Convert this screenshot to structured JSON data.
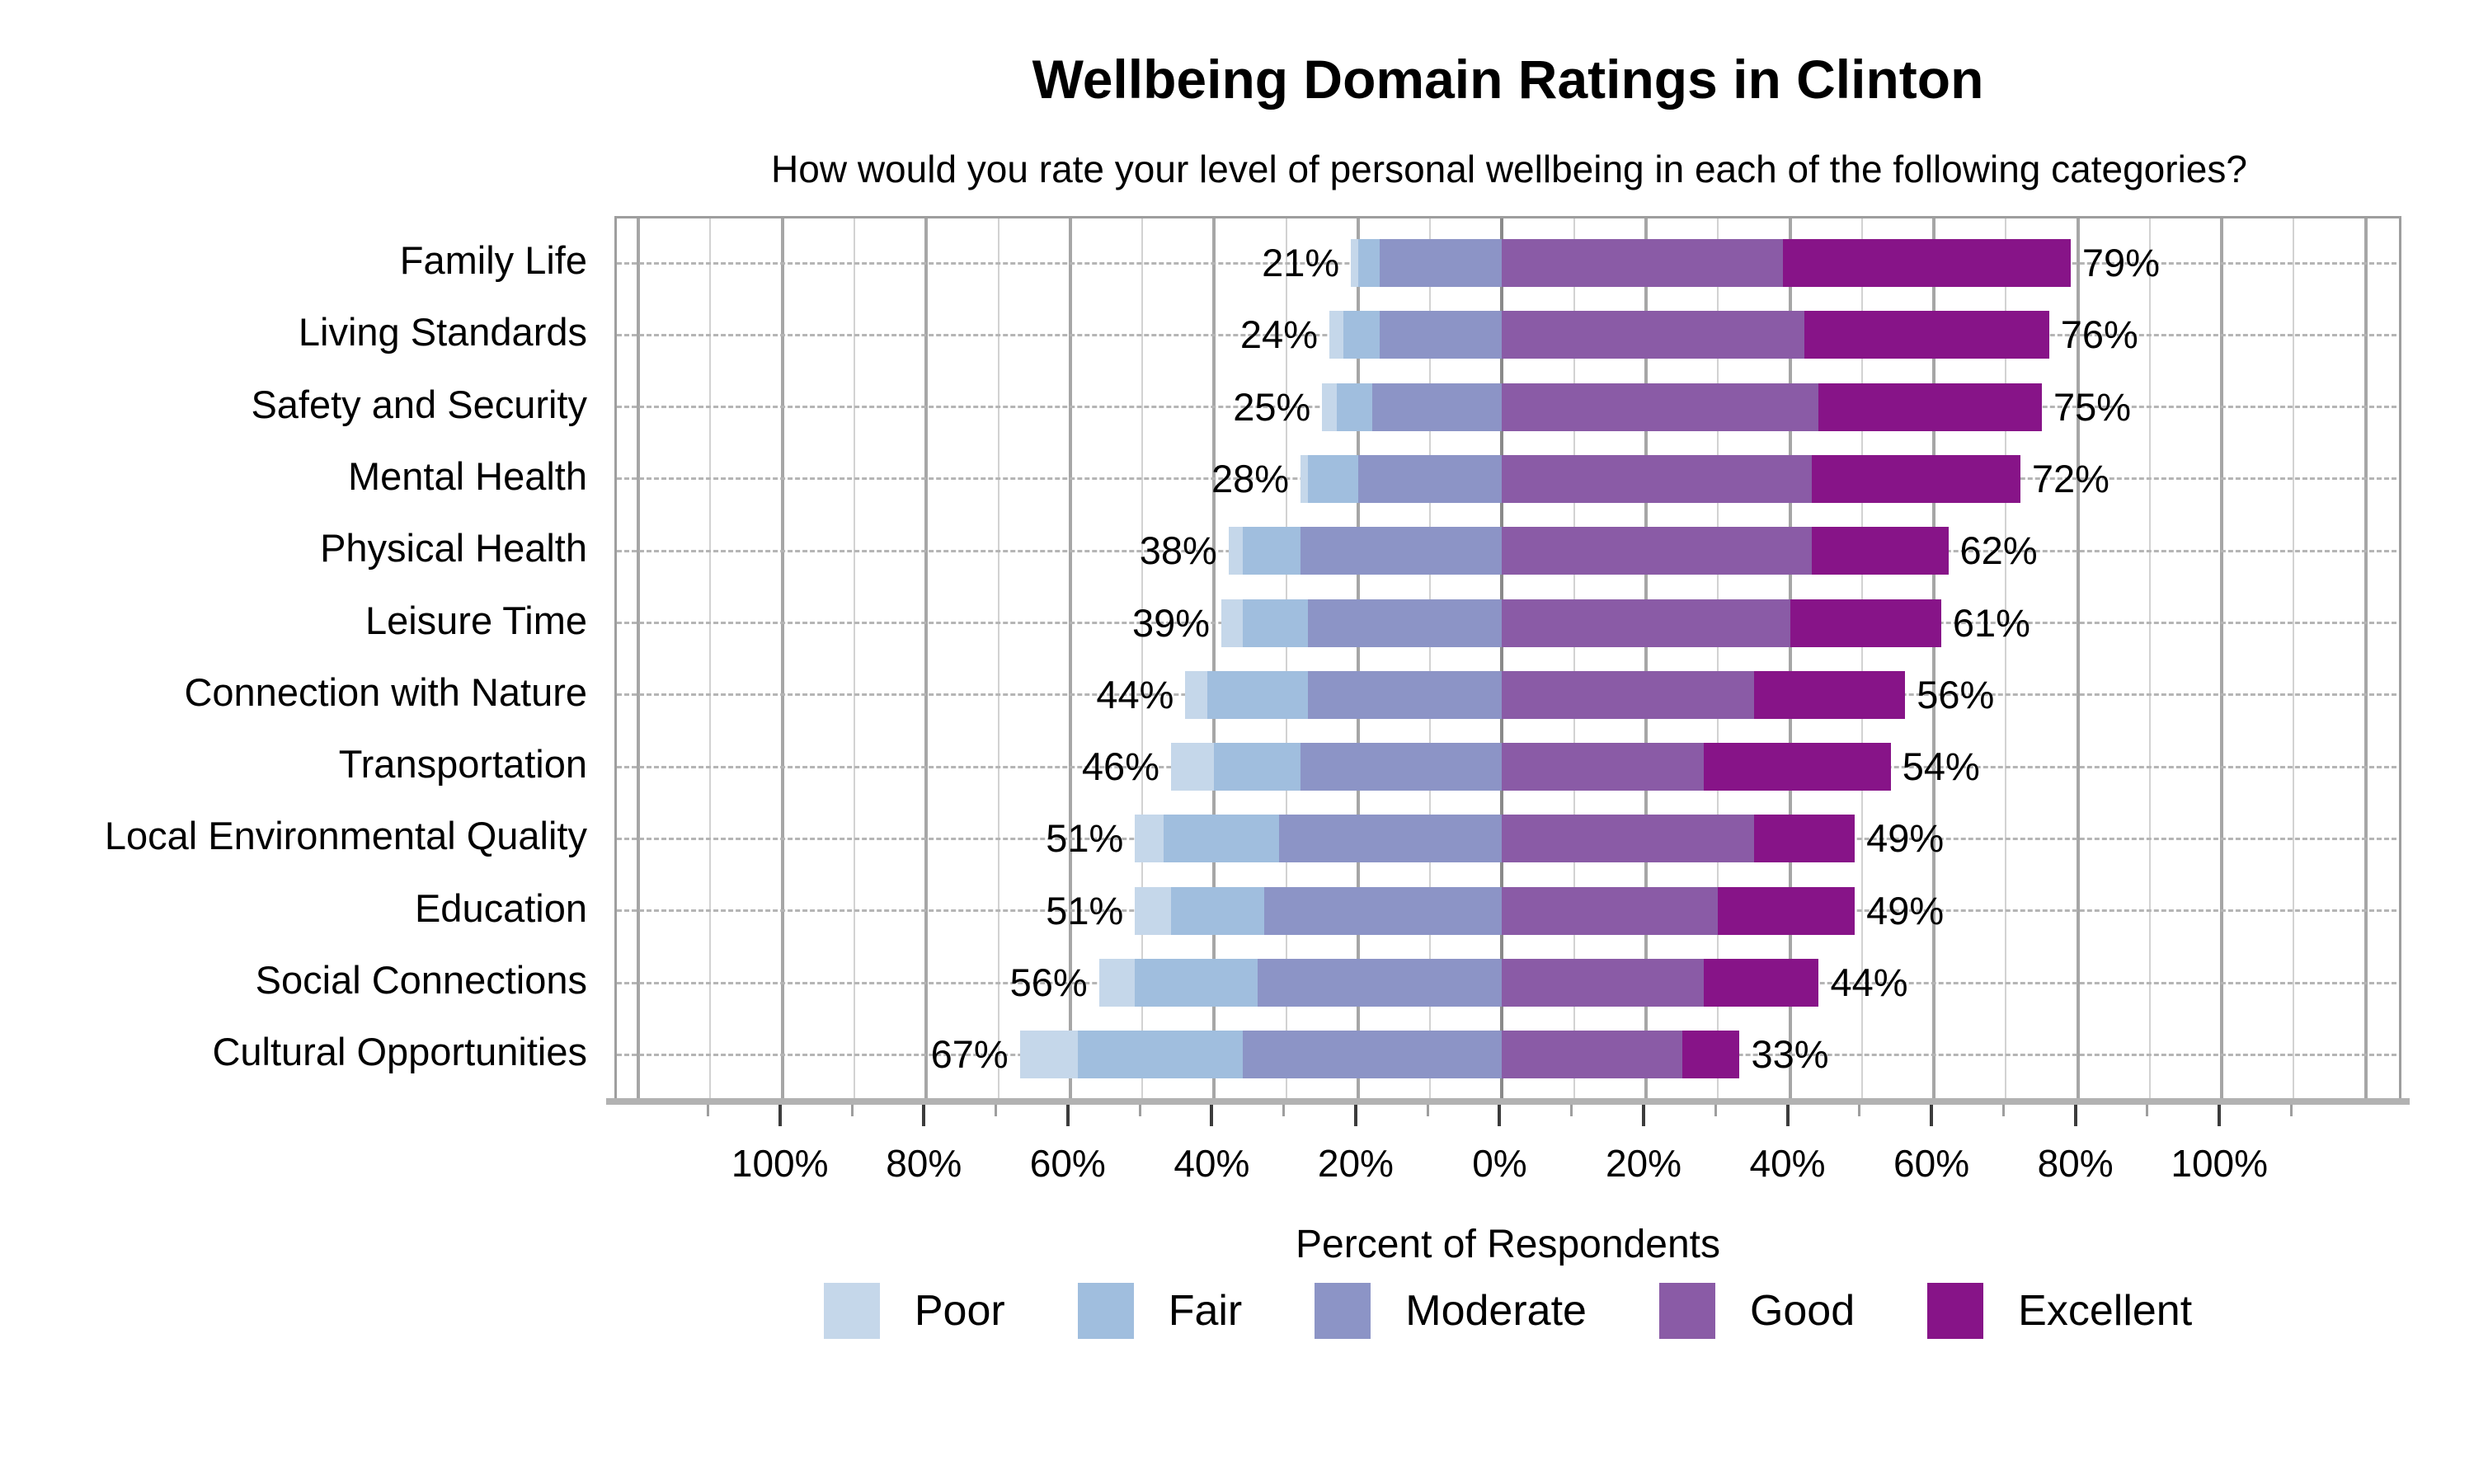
{
  "title": "Wellbeing Domain Ratings in Clinton",
  "subtitle": "How would you rate your level of personal wellbeing in each of the following categories?",
  "chart_data": {
    "type": "bar",
    "subtype": "diverging_stacked_bar",
    "title": "Wellbeing Domain Ratings in Clinton",
    "subtitle": "How would you rate your level of personal wellbeing in each of the following categories?",
    "xlabel": "Percent of Respondents",
    "ylabel": "",
    "xlim": [
      -123,
      125.3
    ],
    "grid": {
      "vertical_minor_step": 10,
      "vertical_major_step": 20,
      "horizontal": "dashed-per-category"
    },
    "legend_position": "bottom",
    "series_names": [
      "Poor",
      "Fair",
      "Moderate",
      "Good",
      "Excellent"
    ],
    "colors": {
      "Poor": "#C5D7EA",
      "Fair": "#A0BEDE",
      "Moderate": "#8C94C6",
      "Good": "#8A5BA6",
      "Excellent": "#871488"
    },
    "negative_side_series": [
      "Poor",
      "Fair",
      "Moderate"
    ],
    "positive_side_series": [
      "Good",
      "Excellent"
    ],
    "x_ticks": [
      {
        "value": -100,
        "label": "100%"
      },
      {
        "value": -80,
        "label": "80%"
      },
      {
        "value": -60,
        "label": "60%"
      },
      {
        "value": -40,
        "label": "40%"
      },
      {
        "value": -20,
        "label": "20%"
      },
      {
        "value": 0,
        "label": "0%"
      },
      {
        "value": 20,
        "label": "20%"
      },
      {
        "value": 40,
        "label": "40%"
      },
      {
        "value": 60,
        "label": "60%"
      },
      {
        "value": 80,
        "label": "80%"
      },
      {
        "value": 100,
        "label": "100%"
      }
    ],
    "rows": [
      {
        "category": "Family Life",
        "values": {
          "Poor": 1,
          "Fair": 3,
          "Moderate": 17,
          "Good": 39,
          "Excellent": 40
        },
        "left_label": "21%",
        "right_label": "79%"
      },
      {
        "category": "Living Standards",
        "values": {
          "Poor": 2,
          "Fair": 5,
          "Moderate": 17,
          "Good": 42,
          "Excellent": 34
        },
        "left_label": "24%",
        "right_label": "76%"
      },
      {
        "category": "Safety and Security",
        "values": {
          "Poor": 2,
          "Fair": 5,
          "Moderate": 18,
          "Good": 44,
          "Excellent": 31
        },
        "left_label": "25%",
        "right_label": "75%"
      },
      {
        "category": "Mental Health",
        "values": {
          "Poor": 1,
          "Fair": 7,
          "Moderate": 20,
          "Good": 43,
          "Excellent": 29
        },
        "left_label": "28%",
        "right_label": "72%"
      },
      {
        "category": "Physical Health",
        "values": {
          "Poor": 2,
          "Fair": 8,
          "Moderate": 28,
          "Good": 43,
          "Excellent": 19
        },
        "left_label": "38%",
        "right_label": "62%"
      },
      {
        "category": "Leisure Time",
        "values": {
          "Poor": 3,
          "Fair": 9,
          "Moderate": 27,
          "Good": 40,
          "Excellent": 21
        },
        "left_label": "39%",
        "right_label": "61%"
      },
      {
        "category": "Connection with Nature",
        "values": {
          "Poor": 3,
          "Fair": 14,
          "Moderate": 27,
          "Good": 35,
          "Excellent": 21
        },
        "left_label": "44%",
        "right_label": "56%"
      },
      {
        "category": "Transportation",
        "values": {
          "Poor": 6,
          "Fair": 12,
          "Moderate": 28,
          "Good": 28,
          "Excellent": 26
        },
        "left_label": "46%",
        "right_label": "54%"
      },
      {
        "category": "Local Environmental Quality",
        "values": {
          "Poor": 4,
          "Fair": 16,
          "Moderate": 31,
          "Good": 35,
          "Excellent": 14
        },
        "left_label": "51%",
        "right_label": "49%"
      },
      {
        "category": "Education",
        "values": {
          "Poor": 5,
          "Fair": 13,
          "Moderate": 33,
          "Good": 30,
          "Excellent": 19
        },
        "left_label": "51%",
        "right_label": "49%"
      },
      {
        "category": "Social Connections",
        "values": {
          "Poor": 5,
          "Fair": 17,
          "Moderate": 34,
          "Good": 28,
          "Excellent": 16
        },
        "left_label": "56%",
        "right_label": "44%"
      },
      {
        "category": "Cultural Opportunities",
        "values": {
          "Poor": 8,
          "Fair": 23,
          "Moderate": 36,
          "Good": 25,
          "Excellent": 8
        },
        "left_label": "67%",
        "right_label": "33%"
      }
    ]
  },
  "legend": {
    "items": [
      {
        "label": "Poor"
      },
      {
        "label": "Fair"
      },
      {
        "label": "Moderate"
      },
      {
        "label": "Good"
      },
      {
        "label": "Excellent"
      }
    ]
  }
}
